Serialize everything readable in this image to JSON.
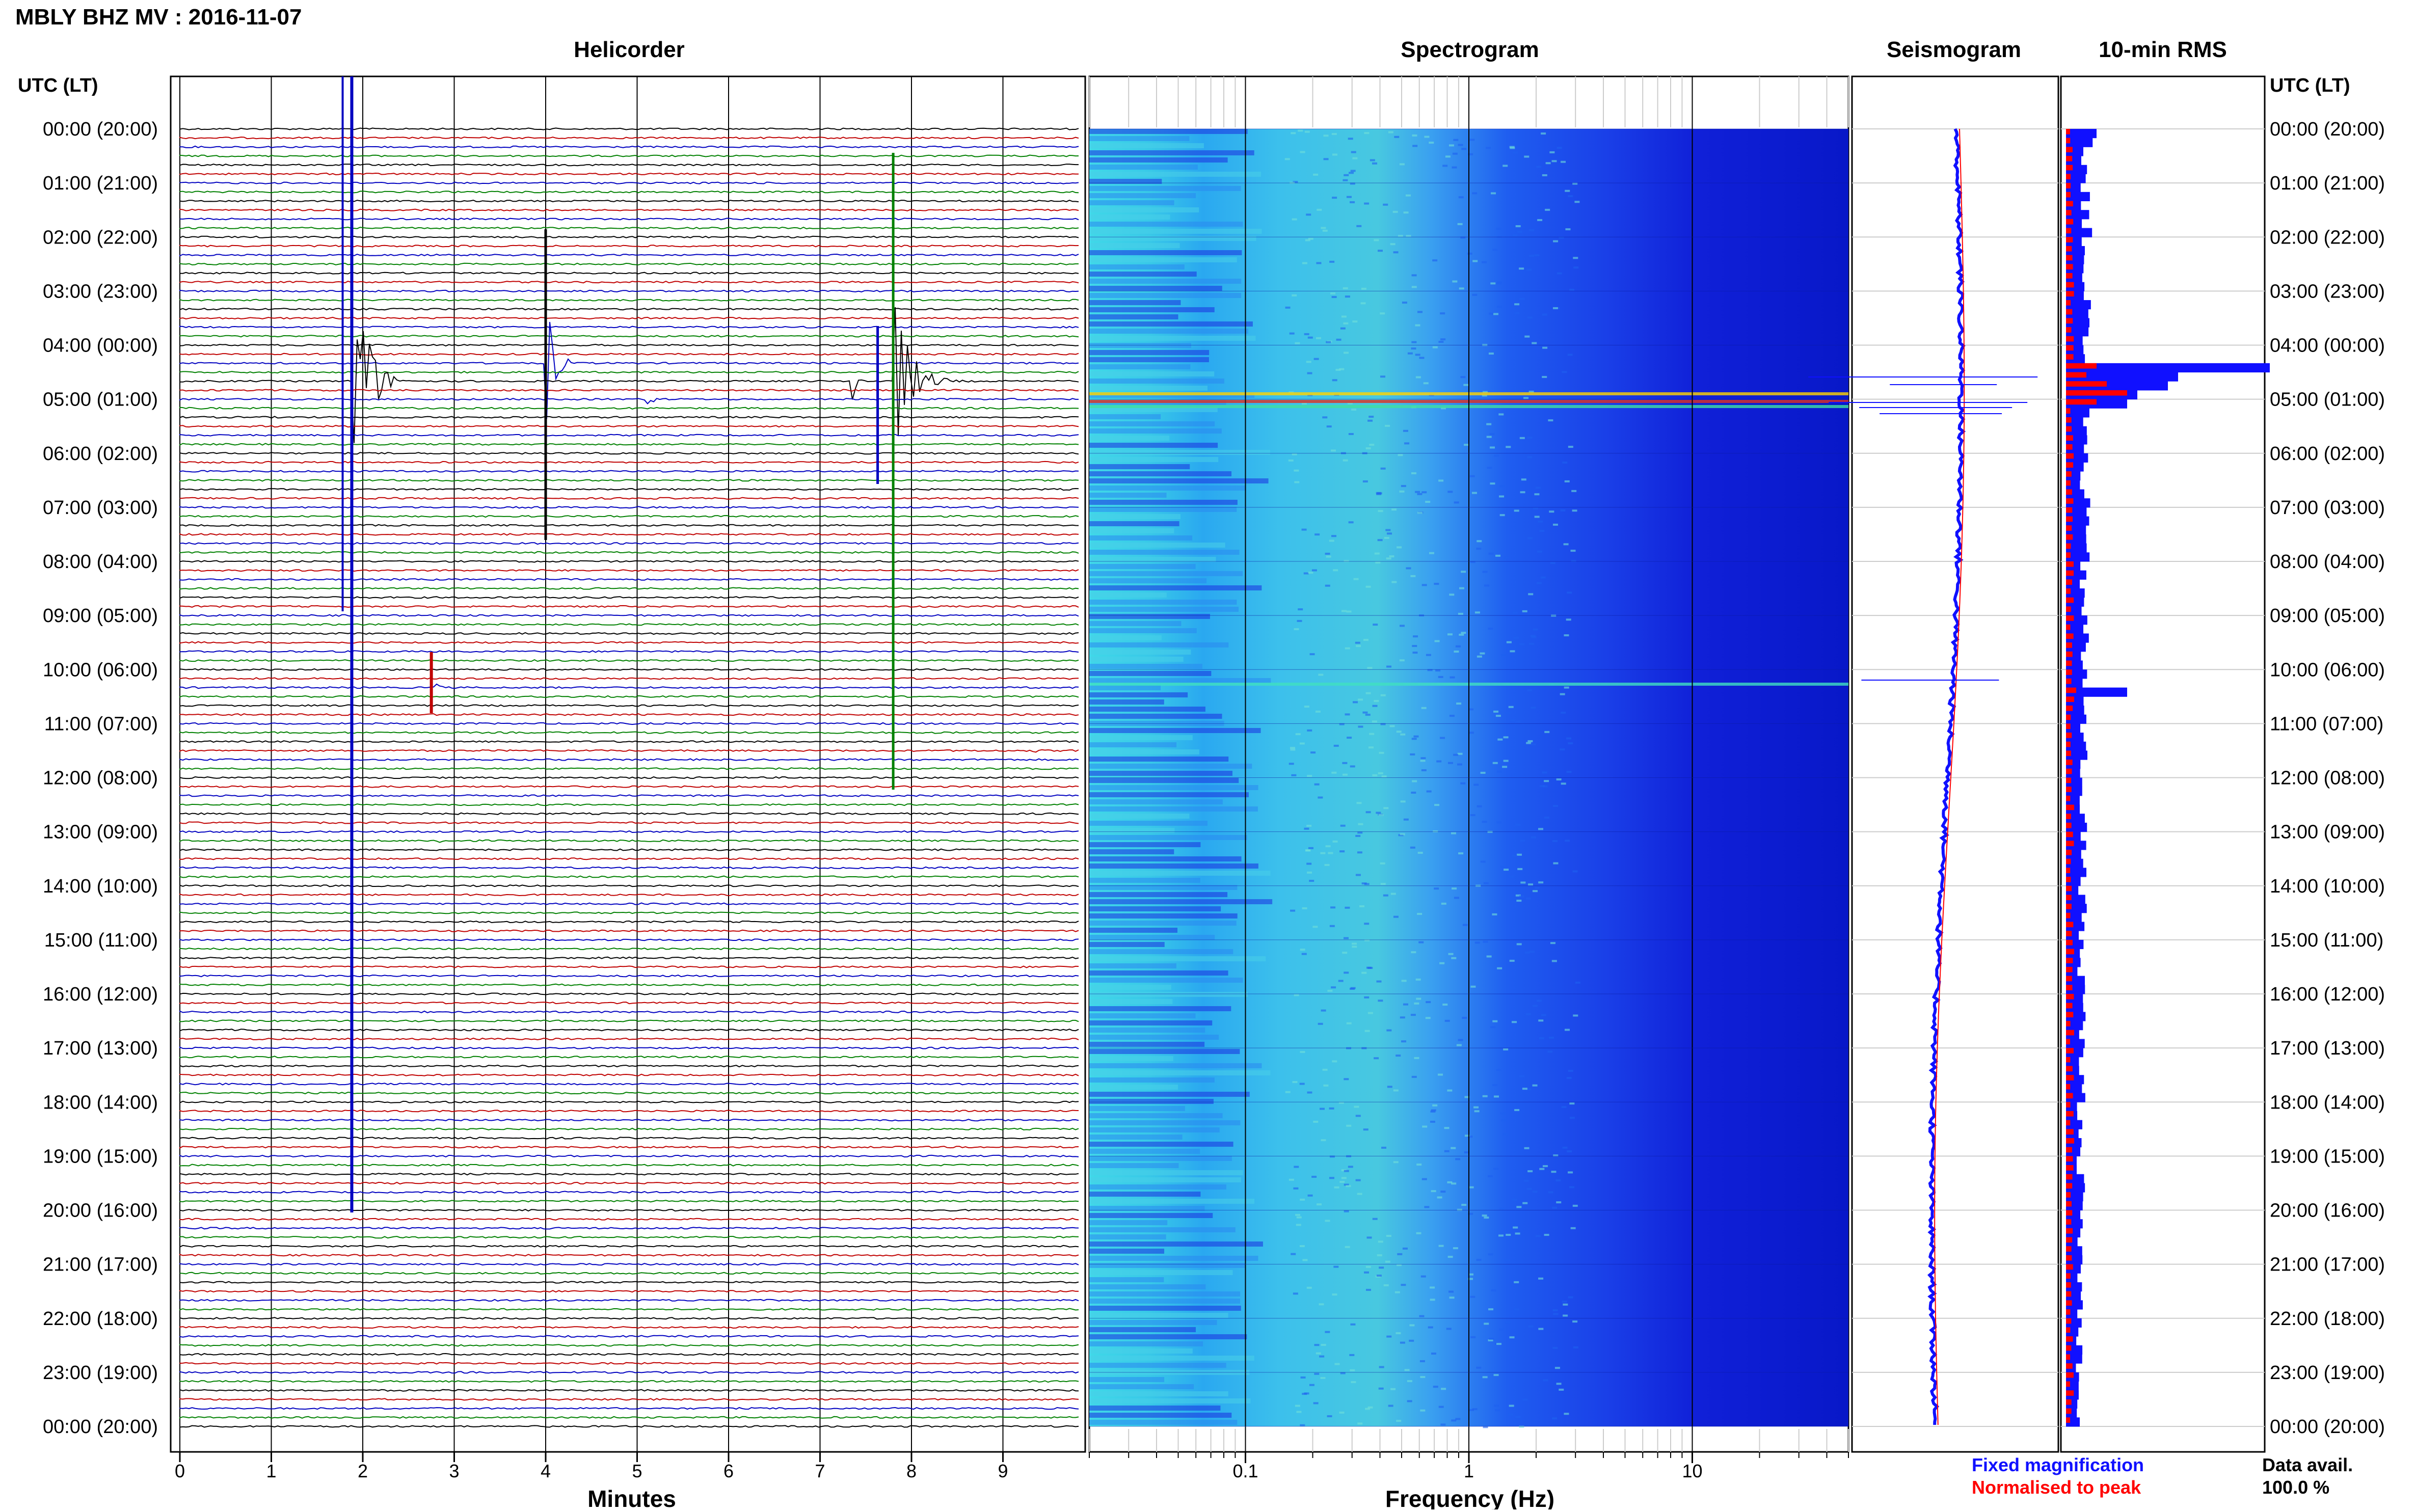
{
  "title": "MBLY BHZ MV : 2016-11-07",
  "panels": {
    "helicorder": "Helicorder",
    "spectrogram": "Spectrogram",
    "seismogram": "Seismogram",
    "rms": "10-min RMS"
  },
  "axis_headers": {
    "left": "UTC (LT)",
    "right": "UTC (LT)"
  },
  "time_labels": [
    "00:00 (20:00)",
    "01:00 (21:00)",
    "02:00 (22:00)",
    "03:00 (23:00)",
    "04:00 (00:00)",
    "05:00 (01:00)",
    "06:00 (02:00)",
    "07:00 (03:00)",
    "08:00 (04:00)",
    "09:00 (05:00)",
    "10:00 (06:00)",
    "11:00 (07:00)",
    "12:00 (08:00)",
    "13:00 (09:00)",
    "14:00 (10:00)",
    "15:00 (11:00)",
    "16:00 (12:00)",
    "17:00 (13:00)",
    "18:00 (14:00)",
    "19:00 (15:00)",
    "20:00 (16:00)",
    "21:00 (17:00)",
    "22:00 (18:00)",
    "23:00 (19:00)",
    "00:00 (20:00)"
  ],
  "legend": {
    "fixed": "Fixed magnification",
    "normalised": "Normalised to peak",
    "fixed_color": "#1010ff",
    "normalised_color": "#ff0000",
    "avail_label": "Data avail.",
    "avail_value": "100.0 %"
  },
  "chart_data": [
    {
      "type": "helicorder",
      "xlabel": "Minutes",
      "x_ticks": [
        0,
        1,
        2,
        3,
        4,
        5,
        6,
        7,
        8,
        9
      ],
      "xlim": [
        0,
        10
      ],
      "trace_colors": [
        "#000000",
        "#c00000",
        "#0000c0",
        "#008000"
      ],
      "traces_per_hour": 6,
      "events": [
        {
          "line": 28,
          "minute": 1.88,
          "amp": 60,
          "dur": 0.8,
          "color": "#0000c0"
        },
        {
          "line": 26,
          "minute": 4.0,
          "amp": 25,
          "dur": 0.5,
          "color": "#000000"
        },
        {
          "line": 28,
          "minute": 7.8,
          "amp": 30,
          "dur": 1.0,
          "color": "#008000"
        },
        {
          "line": 28,
          "minute": 7.35,
          "amp": 8,
          "dur": 0.3,
          "color": "#008000"
        },
        {
          "line": 30,
          "minute": 5.1,
          "amp": 6,
          "dur": 0.3,
          "color": "#0000c0"
        },
        {
          "line": 62,
          "minute": 2.75,
          "amp": 5,
          "dur": 0.3,
          "color": "#c00000"
        },
        {
          "line": 79,
          "minute": 2.8,
          "amp": 3,
          "dur": 0.25,
          "color": "#008000"
        },
        {
          "line": 69,
          "minute": 9.3,
          "amp": 2,
          "dur": 0.3,
          "color": "#c00000"
        }
      ]
    },
    {
      "type": "heatmap",
      "xlabel": "Frequency (Hz)",
      "x_scale": "log",
      "xlim": [
        0.02,
        50
      ],
      "x_ticks": [
        0.1,
        1,
        10
      ],
      "x_tick_labels": [
        "0.1",
        "1",
        "10"
      ]
    },
    {
      "type": "line",
      "name": "Seismogram"
    },
    {
      "type": "bar",
      "name": "10-min RMS",
      "bins": 144,
      "baseline": 0.12,
      "spikes": [
        {
          "bin": 26,
          "value": 1.0,
          "norm": 0.15
        },
        {
          "bin": 27,
          "value": 0.55,
          "norm": 0.1
        },
        {
          "bin": 28,
          "value": 0.5,
          "norm": 0.2
        },
        {
          "bin": 29,
          "value": 0.35,
          "norm": 0.3
        },
        {
          "bin": 30,
          "value": 0.3,
          "norm": 0.15
        },
        {
          "bin": 62,
          "value": 0.3,
          "norm": 0.05
        },
        {
          "bin": 0,
          "value": 0.15,
          "norm": 0.02
        }
      ]
    }
  ]
}
